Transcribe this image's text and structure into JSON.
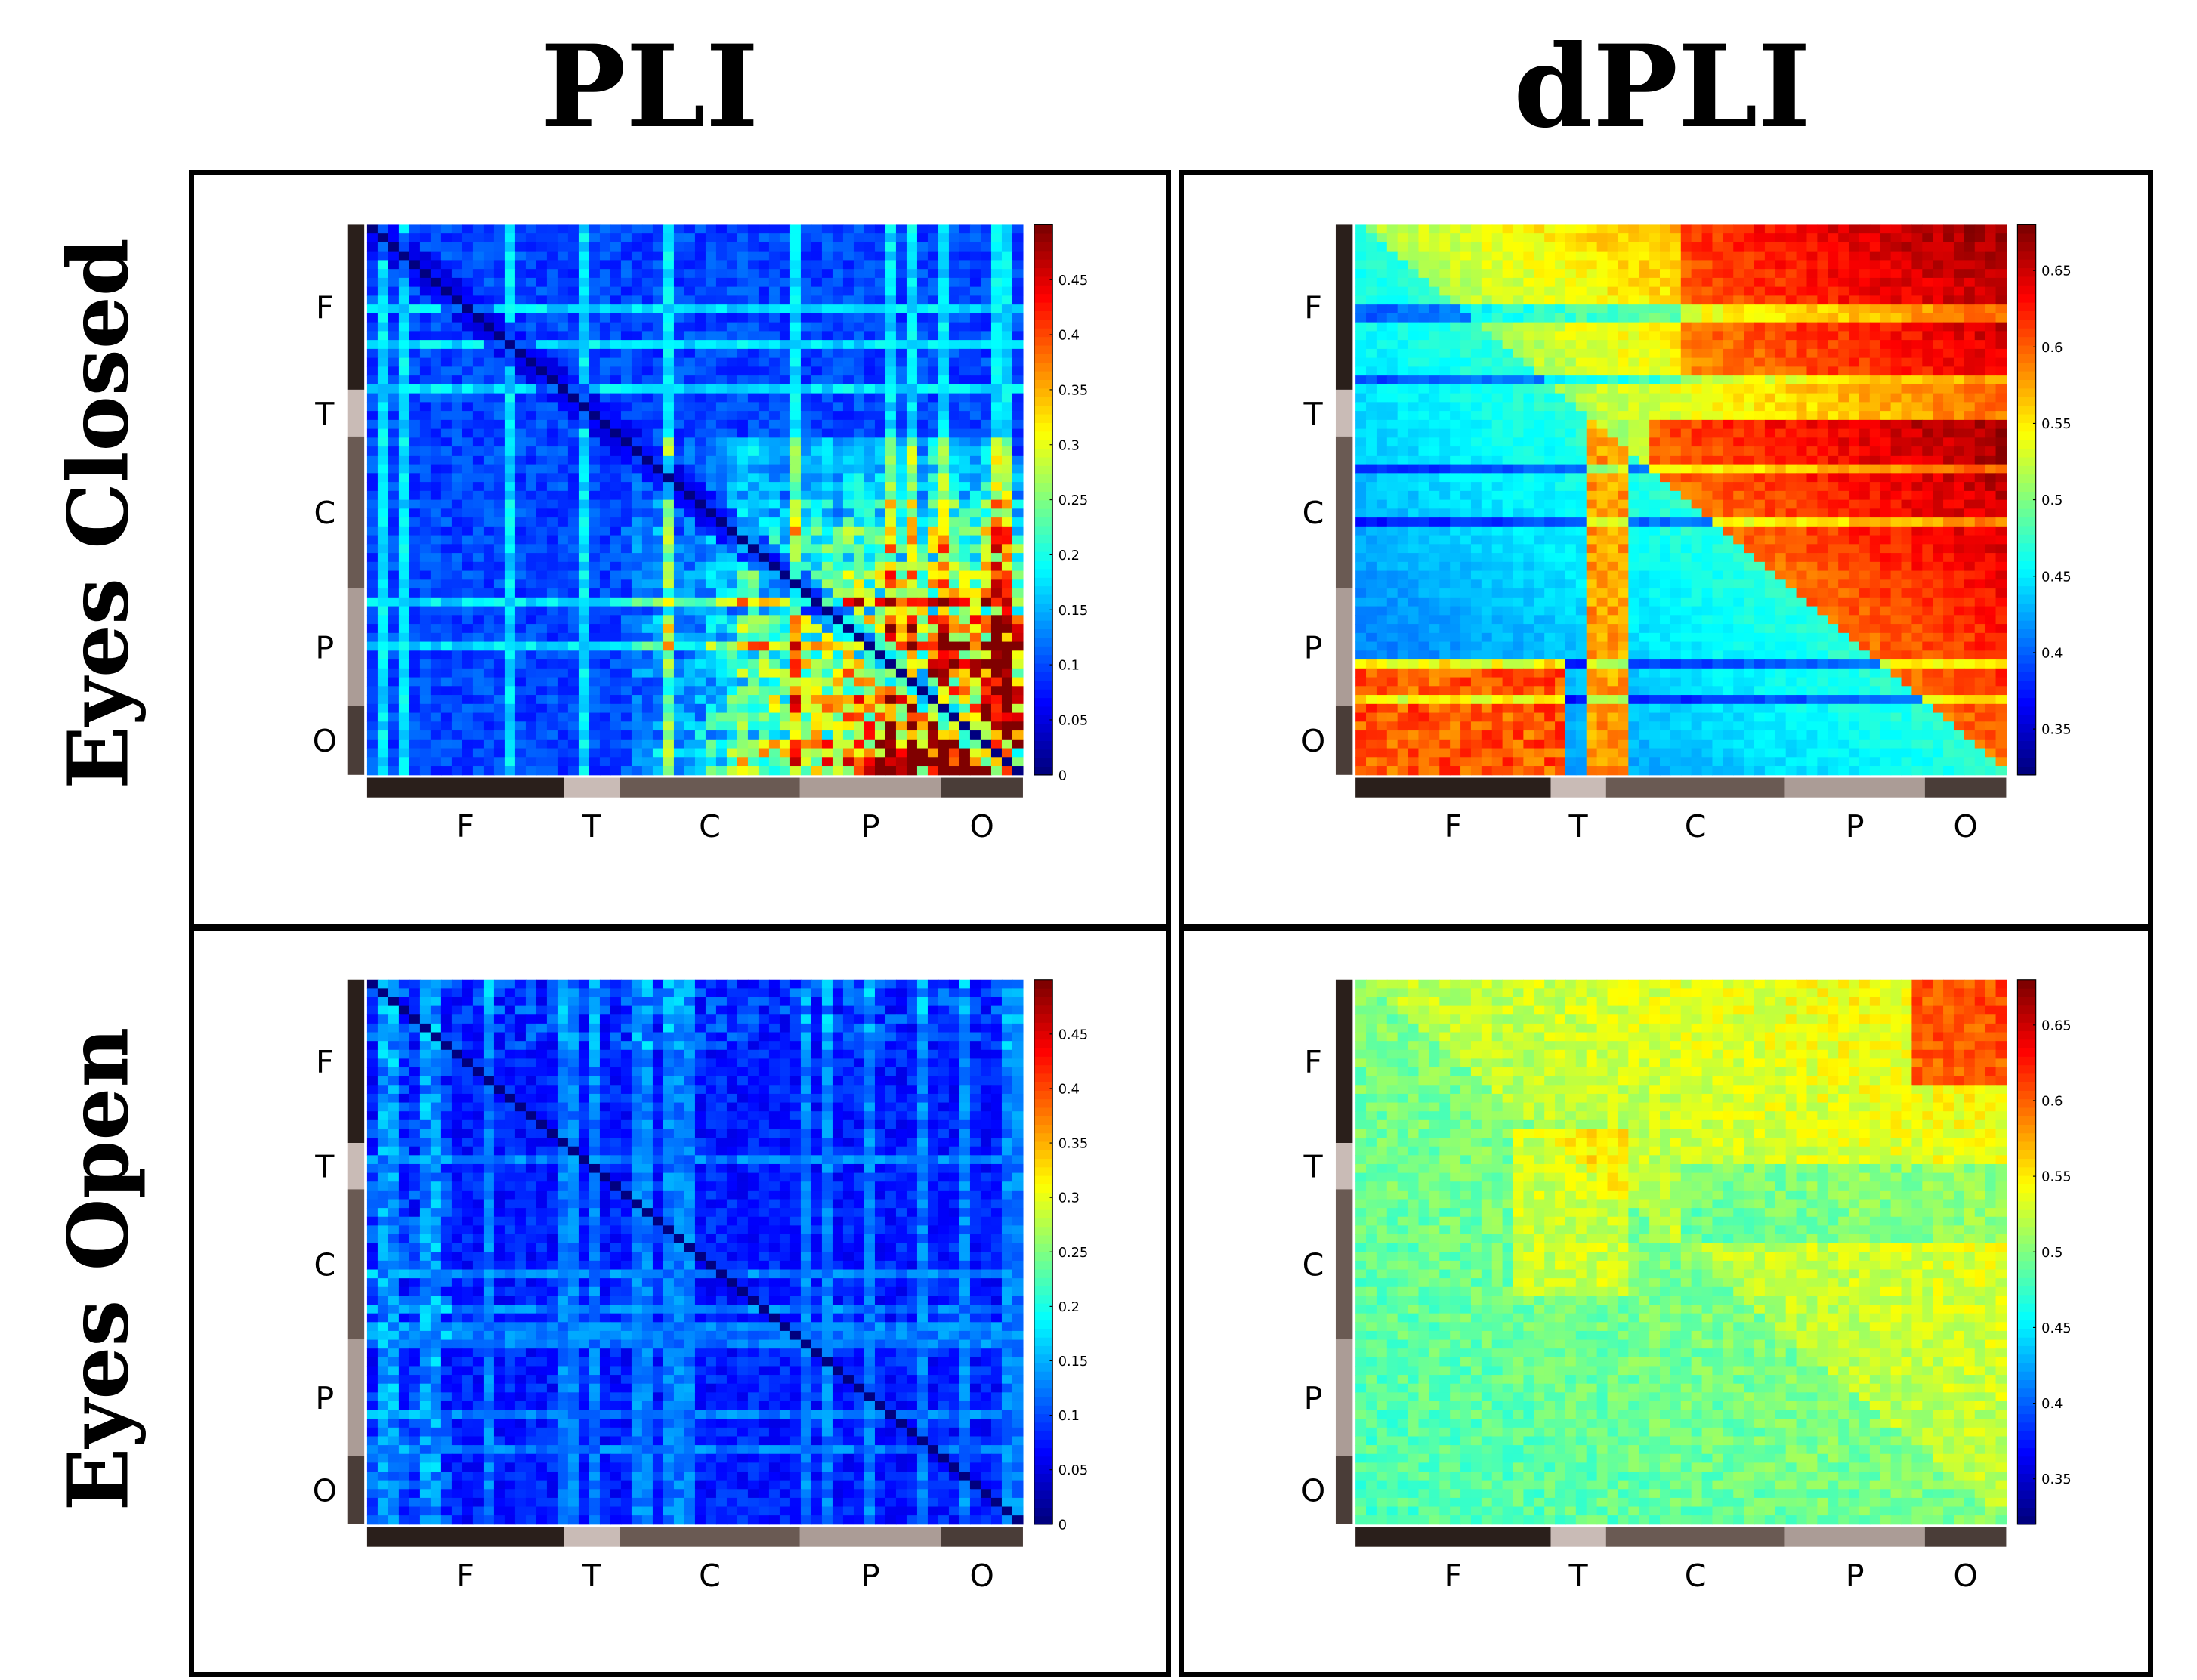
{
  "column_titles": [
    "PLI",
    "dPLI"
  ],
  "row_titles": [
    "Eyes Closed",
    "Eyes Open"
  ],
  "colors": {
    "frontal": "#2a1f1b",
    "temporal": "#c9bbb6",
    "central": "#6a5a53",
    "parietal": "#ab9c96",
    "occipital": "#4a3d38",
    "colormap": "jet"
  },
  "chart_data": [
    {
      "type": "heatmap",
      "title": "",
      "row": "Eyes Closed",
      "column": "PLI",
      "region_labels": [
        "F",
        "T",
        "C",
        "P",
        "O"
      ],
      "region_fractions": [
        0.3,
        0.085,
        0.275,
        0.215,
        0.125
      ],
      "colorbar_ticks": [
        "0",
        "0.05",
        "0.1",
        "0.15",
        "0.2",
        "0.25",
        "0.3",
        "0.35",
        "0.4",
        "0.45"
      ],
      "value_range": [
        0,
        0.5
      ],
      "pattern": "pli_closed"
    },
    {
      "type": "heatmap",
      "title": "",
      "row": "Eyes Closed",
      "column": "dPLI",
      "region_labels": [
        "F",
        "T",
        "C",
        "P",
        "O"
      ],
      "region_fractions": [
        0.3,
        0.085,
        0.275,
        0.215,
        0.125
      ],
      "colorbar_ticks": [
        "0.35",
        "0.4",
        "0.45",
        "0.5",
        "0.55",
        "0.6",
        "0.65"
      ],
      "value_range": [
        0.32,
        0.68
      ],
      "pattern": "dpli_closed"
    },
    {
      "type": "heatmap",
      "title": "",
      "row": "Eyes Open",
      "column": "PLI",
      "region_labels": [
        "F",
        "T",
        "C",
        "P",
        "O"
      ],
      "region_fractions": [
        0.3,
        0.085,
        0.275,
        0.215,
        0.125
      ],
      "colorbar_ticks": [
        "0",
        "0.05",
        "0.1",
        "0.15",
        "0.2",
        "0.25",
        "0.3",
        "0.35",
        "0.4",
        "0.45"
      ],
      "value_range": [
        0,
        0.5
      ],
      "pattern": "pli_open"
    },
    {
      "type": "heatmap",
      "title": "",
      "row": "Eyes Open",
      "column": "dPLI",
      "region_labels": [
        "F",
        "T",
        "C",
        "P",
        "O"
      ],
      "region_fractions": [
        0.3,
        0.085,
        0.275,
        0.215,
        0.125
      ],
      "colorbar_ticks": [
        "0.35",
        "0.4",
        "0.45",
        "0.5",
        "0.55",
        "0.6",
        "0.65"
      ],
      "value_range": [
        0.32,
        0.68
      ],
      "pattern": "dpli_open"
    }
  ]
}
